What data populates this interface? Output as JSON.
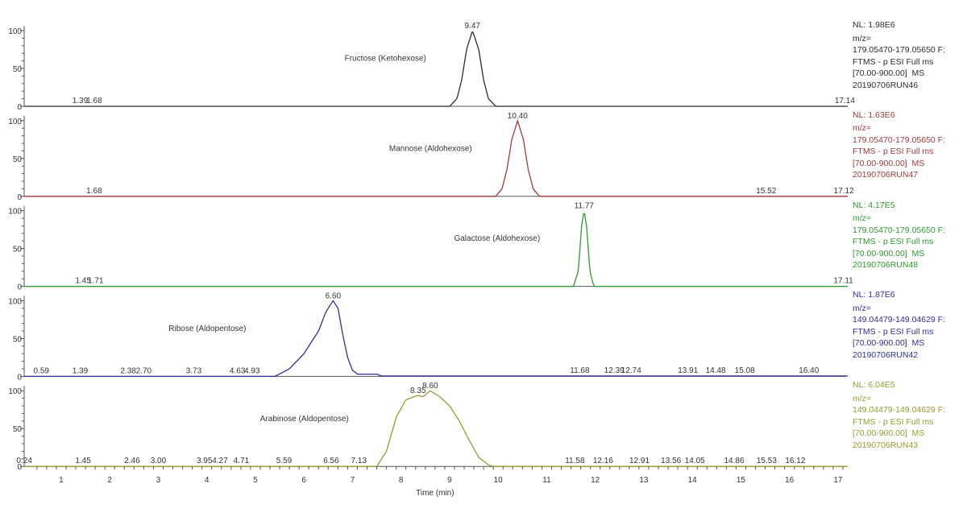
{
  "chart_data": {
    "type": "line",
    "xlabel": "Time (min)",
    "xlim": [
      0.2,
      17.2
    ],
    "xticks": [
      1,
      2,
      3,
      4,
      5,
      6,
      7,
      8,
      9,
      10,
      11,
      12,
      13,
      14,
      15,
      16,
      17
    ],
    "ylim": [
      0,
      100
    ],
    "yticks": [
      0,
      50,
      100
    ],
    "grid": false,
    "panels": [
      {
        "name": "Fructose (Ketohexose)",
        "color": "#2b2b2b",
        "info": {
          "nl": "NL: 1.98E6",
          "mz_label": "m/z=",
          "mz": "179.05470-179.05650 F:",
          "scan": "FTMS - p ESI Full ms",
          "range": "[70.00-900.00]  MS",
          "run": "20190706RUN46"
        },
        "annotations": [
          "1.39",
          "1.68",
          "9.47",
          "17.14"
        ],
        "points": [
          [
            0.2,
            0
          ],
          [
            9.0,
            0
          ],
          [
            9.15,
            10
          ],
          [
            9.25,
            35
          ],
          [
            9.35,
            75
          ],
          [
            9.47,
            100
          ],
          [
            9.6,
            75
          ],
          [
            9.7,
            35
          ],
          [
            9.8,
            10
          ],
          [
            9.95,
            0
          ],
          [
            17.2,
            0
          ]
        ]
      },
      {
        "name": "Mannose (Aldohexose)",
        "color": "#a33a3a",
        "info": {
          "nl": "NL: 1.63E6",
          "mz_label": "m/z=",
          "mz": "179.05470-179.05650 F:",
          "scan": "FTMS - p ESI Full ms",
          "range": "[70.00-900.00]  MS",
          "run": "20190706RUN47"
        },
        "annotations": [
          "1.68",
          "10.40",
          "15.52",
          "17.12"
        ],
        "points": [
          [
            0.2,
            0
          ],
          [
            9.95,
            0
          ],
          [
            10.08,
            10
          ],
          [
            10.18,
            35
          ],
          [
            10.28,
            75
          ],
          [
            10.4,
            100
          ],
          [
            10.52,
            75
          ],
          [
            10.62,
            35
          ],
          [
            10.72,
            10
          ],
          [
            10.85,
            0
          ],
          [
            17.2,
            0
          ]
        ]
      },
      {
        "name": "Galactose (Aldohexose)",
        "color": "#2e9a2e",
        "info": {
          "nl": "NL: 4.17E5",
          "mz_label": "m/z=",
          "mz": "179.05470-179.05650 F:",
          "scan": "FTMS - p ESI Full ms",
          "range": "[70.00-900.00]  MS",
          "run": "20190706RUN48"
        },
        "annotations": [
          "1.45",
          "1.71",
          "11.77",
          "17.11"
        ],
        "points": [
          [
            0.2,
            0
          ],
          [
            11.55,
            0
          ],
          [
            11.65,
            20
          ],
          [
            11.72,
            80
          ],
          [
            11.77,
            100
          ],
          [
            11.82,
            80
          ],
          [
            11.89,
            20
          ],
          [
            11.97,
            0
          ],
          [
            17.2,
            0
          ]
        ]
      },
      {
        "name": "Ribose (Aldopentose)",
        "color": "#2e2e9a",
        "info": {
          "nl": "NL: 1.87E6",
          "mz_label": "m/z=",
          "mz": "149.04479-149.04629 F:",
          "scan": "FTMS - p ESI Full ms",
          "range": "[70.00-900.00]  MS",
          "run": "20190706RUN42"
        },
        "annotations": [
          "0.59",
          "1.39",
          "2.38",
          "2.70",
          "3.73",
          "4.63",
          "4.93",
          "6.60",
          "11.68",
          "12.39",
          "12.74",
          "13.91",
          "14.48",
          "15.08",
          "16.40"
        ],
        "points": [
          [
            0.2,
            0
          ],
          [
            5.4,
            0
          ],
          [
            5.7,
            10
          ],
          [
            6.0,
            30
          ],
          [
            6.3,
            60
          ],
          [
            6.45,
            85
          ],
          [
            6.6,
            100
          ],
          [
            6.7,
            90
          ],
          [
            6.8,
            55
          ],
          [
            6.9,
            25
          ],
          [
            7.0,
            8
          ],
          [
            7.1,
            3
          ],
          [
            7.5,
            3
          ],
          [
            7.6,
            0.5
          ],
          [
            17.2,
            0.5
          ]
        ]
      },
      {
        "name": "Arabinose (Aldopentose)",
        "color": "#9a9a2e",
        "info": {
          "nl": "NL: 6.04E5",
          "mz_label": "m/z=",
          "mz": "149.04479-149.04629 F:",
          "scan": "FTMS - p ESI Full ms",
          "range": "[70.00-900.00]  MS",
          "run": "20190706RUN43"
        },
        "annotations": [
          "0.24",
          "1.45",
          "2.46",
          "3.00",
          "3.95",
          "4.27",
          "4.71",
          "5.59",
          "6.56",
          "7.13",
          "8.35",
          "8.60",
          "11.58",
          "12.16",
          "12.91",
          "13.56",
          "14.05",
          "14.86",
          "15.53",
          "16.12"
        ],
        "points": [
          [
            0.2,
            0
          ],
          [
            7.5,
            0
          ],
          [
            7.7,
            20
          ],
          [
            7.9,
            65
          ],
          [
            8.1,
            88
          ],
          [
            8.35,
            94
          ],
          [
            8.45,
            92
          ],
          [
            8.6,
            100
          ],
          [
            8.8,
            92
          ],
          [
            9.0,
            80
          ],
          [
            9.2,
            60
          ],
          [
            9.4,
            35
          ],
          [
            9.6,
            12
          ],
          [
            9.8,
            2
          ],
          [
            9.9,
            0
          ],
          [
            17.2,
            0
          ]
        ]
      }
    ]
  }
}
